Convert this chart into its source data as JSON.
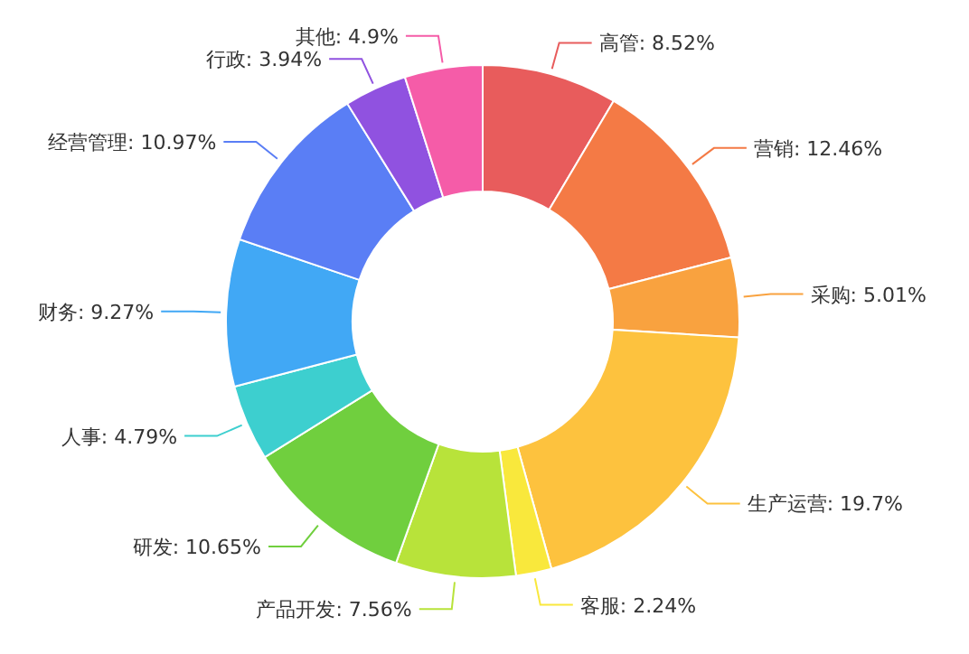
{
  "chart_data": {
    "type": "donut",
    "categories": [
      "高管",
      "营销",
      "采购",
      "生产运营",
      "客服",
      "产品开发",
      "研发",
      "人事",
      "财务",
      "经营管理",
      "行政",
      "其他"
    ],
    "values": [
      8.52,
      12.46,
      5.01,
      19.7,
      2.24,
      7.56,
      10.65,
      4.79,
      9.27,
      10.97,
      3.94,
      4.9
    ],
    "value_labels": [
      "8.52%",
      "12.46%",
      "5.01%",
      "19.7%",
      "2.24%",
      "7.56%",
      "10.65%",
      "4.79%",
      "9.27%",
      "10.97%",
      "3.94%",
      "4.9%"
    ],
    "colors": [
      "#e85c5c",
      "#f47a45",
      "#f9a23f",
      "#fdc23e",
      "#f9e83c",
      "#b8e33a",
      "#70cf3e",
      "#3dcfcf",
      "#41a8f5",
      "#5a7ef5",
      "#9052e0",
      "#f55ca8"
    ]
  }
}
